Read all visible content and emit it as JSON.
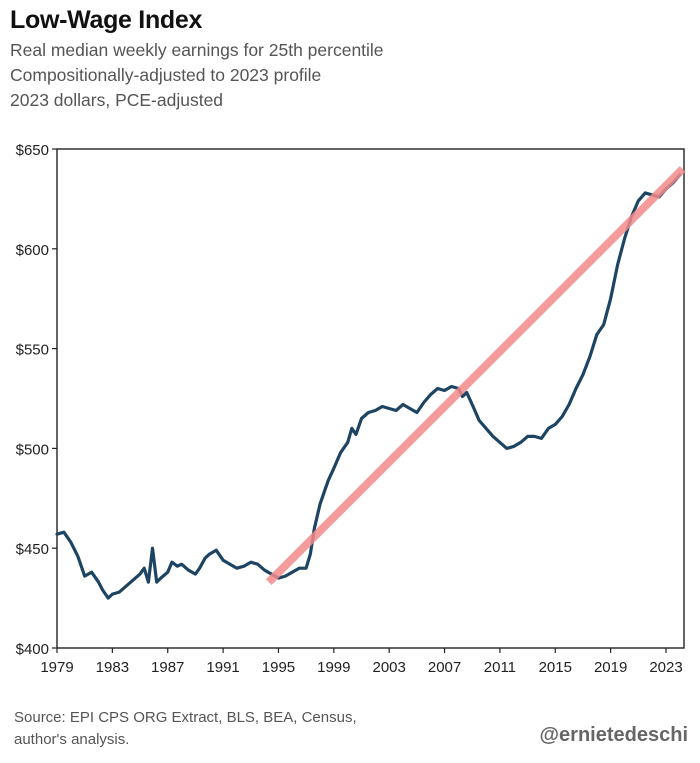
{
  "header": {
    "title": "Low-Wage Index",
    "subtitle_lines": [
      "Real median weekly earnings for 25th percentile",
      "Compositionally-adjusted to 2023 profile",
      "2023 dollars, PCE-adjusted"
    ]
  },
  "footer": {
    "source_line1": "Source: EPI CPS ORG Extract, BLS, BEA, Census,",
    "source_line2": "author's analysis.",
    "handle": "@ernietedeschi"
  },
  "colors": {
    "series": "#1d4563",
    "trend": "#f28b8b",
    "axis": "#222222"
  },
  "chart_data": {
    "type": "line",
    "title": "Low-Wage Index",
    "xlabel": "",
    "ylabel": "",
    "xlim": [
      1979,
      2024.3
    ],
    "ylim": [
      400,
      650
    ],
    "grid": false,
    "x_ticks": [
      1979,
      1983,
      1987,
      1991,
      1995,
      1999,
      2003,
      2007,
      2011,
      2015,
      2019,
      2023
    ],
    "x_tick_labels": [
      "1979",
      "1983",
      "1987",
      "1991",
      "1995",
      "1999",
      "2003",
      "2007",
      "2011",
      "2015",
      "2019",
      "2023"
    ],
    "y_ticks": [
      400,
      450,
      500,
      550,
      600,
      650
    ],
    "y_tick_labels": [
      "$400",
      "$450",
      "$500",
      "$550",
      "$600",
      "$650"
    ],
    "series": [
      {
        "name": "Low-Wage Index",
        "x": [
          1979,
          1979.5,
          1980,
          1980.5,
          1981,
          1981.5,
          1982,
          1982.3,
          1982.7,
          1983,
          1983.5,
          1984,
          1984.5,
          1985,
          1985.3,
          1985.6,
          1985.9,
          1986.2,
          1986.5,
          1987,
          1987.3,
          1987.7,
          1988,
          1988.5,
          1989,
          1989.3,
          1989.7,
          1990,
          1990.5,
          1991,
          1991.5,
          1992,
          1992.5,
          1993,
          1993.5,
          1994,
          1994.5,
          1995,
          1995.5,
          1996,
          1996.5,
          1997,
          1997.3,
          1997.6,
          1998,
          1998.3,
          1998.6,
          1999,
          1999.5,
          2000,
          2000.3,
          2000.6,
          2001,
          2001.5,
          2002,
          2002.5,
          2003,
          2003.5,
          2004,
          2004.5,
          2005,
          2005.5,
          2006,
          2006.5,
          2007,
          2007.5,
          2008,
          2008.3,
          2008.6,
          2009,
          2009.5,
          2010,
          2010.5,
          2011,
          2011.5,
          2012,
          2012.5,
          2013,
          2013.5,
          2014,
          2014.5,
          2015,
          2015.5,
          2016,
          2016.5,
          2017,
          2017.5,
          2018,
          2018.5,
          2019,
          2019.5,
          2020,
          2020.5,
          2021,
          2021.5,
          2022,
          2022.5,
          2023,
          2023.5,
          2024
        ],
        "values": [
          457,
          458,
          453,
          446,
          436,
          438,
          433,
          429,
          425,
          427,
          428,
          431,
          434,
          437,
          440,
          433,
          450,
          433,
          435,
          438,
          443,
          441,
          442,
          439,
          437,
          440,
          445,
          447,
          449,
          444,
          442,
          440,
          441,
          443,
          442,
          439,
          437,
          435,
          436,
          438,
          440,
          440,
          447,
          460,
          472,
          478,
          484,
          490,
          498,
          503,
          510,
          507,
          515,
          518,
          519,
          521,
          520,
          519,
          522,
          520,
          518,
          523,
          527,
          530,
          529,
          531,
          530,
          526,
          528,
          522,
          514,
          510,
          506,
          503,
          500,
          501,
          503,
          506,
          506,
          505,
          510,
          512,
          516,
          522,
          530,
          537,
          546,
          557,
          562,
          575,
          592,
          605,
          616,
          624,
          628,
          627,
          626,
          630,
          633,
          637
        ]
      },
      {
        "name": "Trend",
        "x": [
          1994.3,
          2024.2
        ],
        "values": [
          433,
          640
        ]
      }
    ]
  }
}
